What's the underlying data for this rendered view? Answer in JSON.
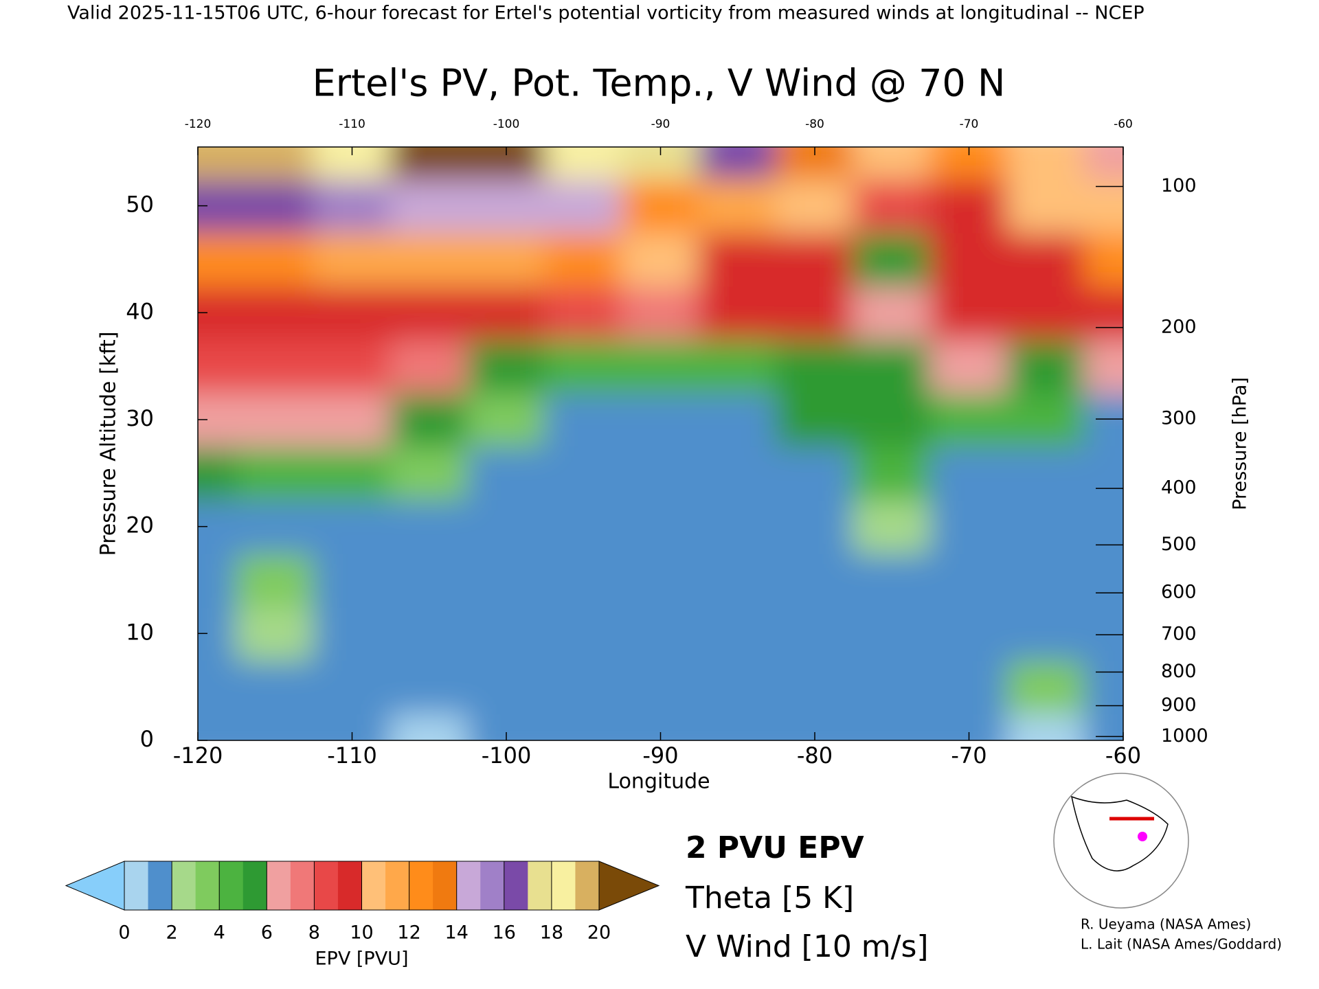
{
  "chart_data": {
    "type": "heatmap",
    "header": "Valid 2025-11-15T06 UTC, 6-hour forecast for Ertel's potential vorticity from measured winds at longitudinal -- NCEP",
    "title": "Ertel's PV, Pot. Temp., V Wind @ 70 N",
    "xlabel": "Longitude",
    "ylabel": "Pressure Altitude [kft]",
    "y2label": "Pressure [hPa]",
    "x": [
      -120,
      -115,
      -110,
      -105,
      -100,
      -95,
      -90,
      -85,
      -80,
      -75,
      -70,
      -65,
      -60
    ],
    "y": [
      0,
      5,
      10,
      15,
      20,
      25,
      30,
      35,
      40,
      45,
      50,
      55
    ],
    "z": [
      [
        1,
        1,
        1,
        0.5,
        1,
        1,
        1,
        1,
        1,
        1,
        1,
        0.5,
        1
      ],
      [
        1.5,
        1,
        1,
        1,
        1,
        1,
        1,
        1,
        1,
        1,
        1,
        3,
        1
      ],
      [
        1.5,
        2,
        1,
        1,
        1,
        1,
        1,
        1,
        1,
        1,
        1,
        1.5,
        1
      ],
      [
        1.5,
        3,
        1,
        1,
        1,
        1,
        1,
        1,
        1,
        1,
        1,
        1,
        1
      ],
      [
        1.5,
        1.5,
        1.5,
        1.5,
        1,
        1,
        1,
        1,
        1,
        2,
        1,
        1,
        1
      ],
      [
        5,
        4,
        4,
        3.5,
        1.5,
        1,
        1,
        1,
        1.5,
        4,
        1.5,
        1.5,
        1
      ],
      [
        6,
        6,
        6,
        5,
        3,
        1.5,
        1.5,
        1.5,
        5,
        5,
        4,
        4,
        1.5
      ],
      [
        8,
        8,
        8,
        7,
        5,
        4,
        4,
        4,
        5,
        5,
        6,
        5,
        6
      ],
      [
        9,
        9,
        9,
        9,
        9,
        8,
        7,
        9,
        9,
        6,
        9,
        9,
        9
      ],
      [
        12,
        12,
        11,
        11,
        11,
        12,
        10,
        9,
        9,
        5,
        9,
        9,
        12
      ],
      [
        16,
        16,
        15,
        14,
        14,
        14,
        12,
        11,
        10,
        8,
        9,
        10,
        10
      ],
      [
        19,
        19,
        18,
        20,
        21,
        18,
        17,
        16,
        13,
        10,
        12,
        10,
        6
      ]
    ],
    "xlim": [
      -120,
      -60
    ],
    "ylim": [
      0,
      55.5
    ],
    "xticks": [
      -120,
      -110,
      -100,
      -90,
      -80,
      -70,
      -60
    ],
    "yticks": [
      0,
      10,
      20,
      30,
      40,
      50
    ],
    "y2scale": "pressure-altitude",
    "y2ticks": [
      100,
      200,
      300,
      400,
      500,
      600,
      700,
      800,
      900,
      1000
    ],
    "colorbar": {
      "label": "EPV [PVU]",
      "lim": [
        0,
        20
      ],
      "ticks": [
        0,
        2,
        4,
        6,
        8,
        10,
        12,
        14,
        16,
        18,
        20
      ],
      "colors": [
        "#a9d4ee",
        "#4f8fcc",
        "#a6d98a",
        "#7fcb5e",
        "#4cb340",
        "#2e9a33",
        "#f0a0a0",
        "#f07878",
        "#e84848",
        "#d82a2a",
        "#ffc078",
        "#ffa84a",
        "#ff8c1a",
        "#f07a10",
        "#c8a8d8",
        "#a080c8",
        "#7a4aa8",
        "#e8e090",
        "#f8f0a0",
        "#d8b060"
      ],
      "under": "#87cefa",
      "over": "#7a4a08"
    },
    "legend": [
      {
        "name": "2 PVU EPV",
        "color": "#ff00ff"
      },
      {
        "name": "Theta [5 K]",
        "color": "#aaaaaa"
      },
      {
        "name": "V Wind [10 m/s]",
        "color": "#000000"
      }
    ],
    "credits": [
      "R. Ueyama (NASA Ames)",
      "L. Lait (NASA Ames/Goddard)"
    ]
  }
}
